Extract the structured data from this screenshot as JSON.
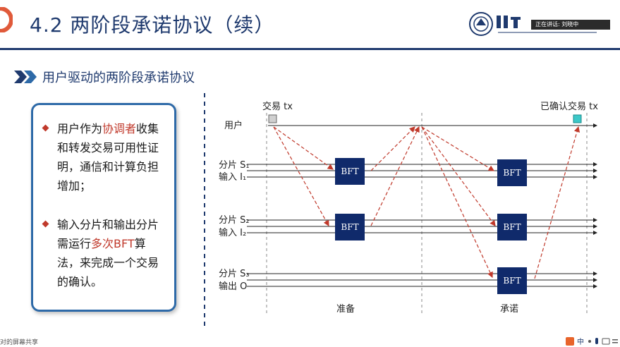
{
  "header": {
    "title": "4.2 两阶段承诺协议（续）",
    "speaker_badge": "正在讲话: 刘晓中",
    "colors": {
      "primary": "#1f3a6e",
      "accent": "#c0392b",
      "card_border": "#2e6aa8"
    }
  },
  "section": {
    "heading": "用户驱动的两阶段承诺协议"
  },
  "card": {
    "bullet1": {
      "pre": "用户作为",
      "highlight": "协调者",
      "post": "收集和转发交易可用性证明，通信和计算负担增加；"
    },
    "bullet2": {
      "pre": "输入分片和输出分片需运行",
      "highlight": "多次BFT",
      "post": "算法，来完成一个交易的确认。"
    }
  },
  "diagram": {
    "tx_label": "交易 tx",
    "confirmed_label": "已确认交易 tx",
    "user_label": "用户",
    "shard1_label": "分片 S₁",
    "input1_label": "输入 I₁",
    "shard2_label": "分片 S₂",
    "input2_label": "输入 I₂",
    "shard3_label": "分片 S₃",
    "output_label": "输出 O",
    "bft_label": "BFT",
    "phase_prepare": "准备",
    "phase_commit": "承诺"
  },
  "footer": {
    "share_tag": "对的屏幕共享"
  }
}
